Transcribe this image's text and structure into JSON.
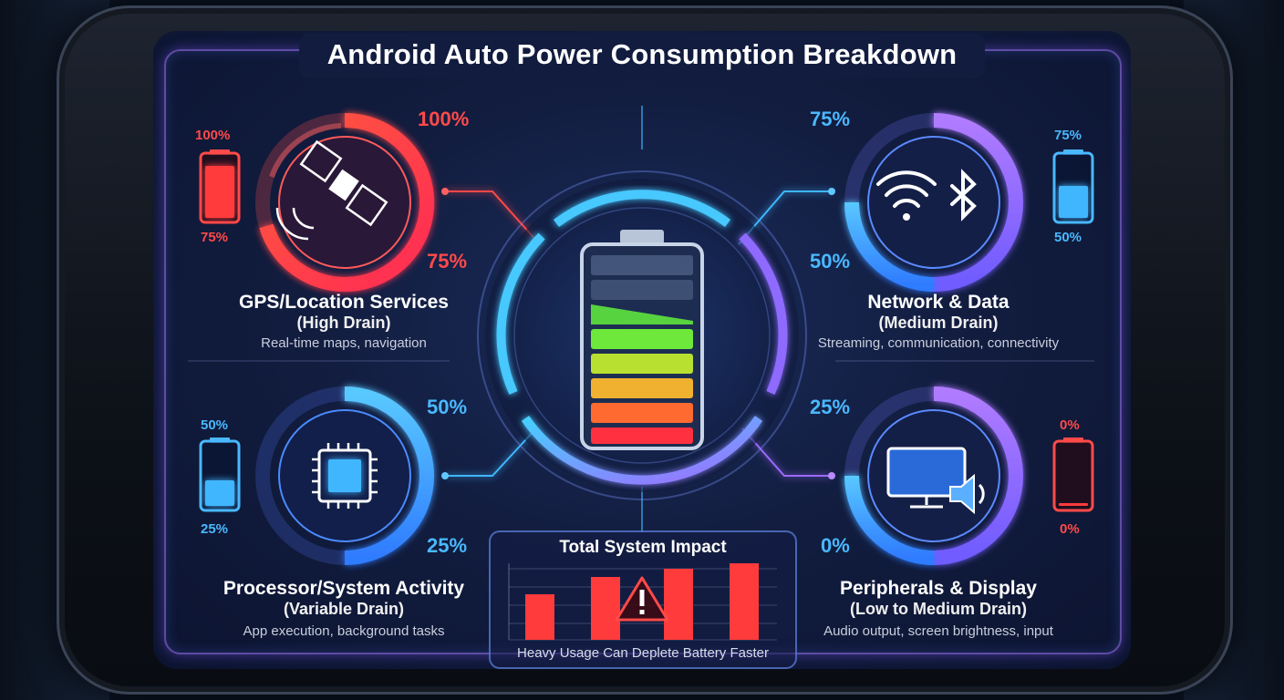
{
  "title": "Android Auto Power Consumption Breakdown",
  "colors": {
    "red": "#ff3b3b",
    "blue": "#3fb6ff",
    "purple": "#9b6bff",
    "green": "#5be23a"
  },
  "sections": {
    "gps": {
      "title": "GPS/Location Services",
      "subtitle": "(High Drain)",
      "description": "Real-time maps, navigation",
      "ring_top": "100%",
      "ring_bottom": "75%",
      "gauge_top": "100%",
      "gauge_bottom": "75%",
      "level": 0.9,
      "icon": "satellite-icon"
    },
    "network": {
      "title": "Network & Data",
      "subtitle": "(Medium Drain)",
      "description": "Streaming, communication, connectivity",
      "ring_top": "75%",
      "ring_bottom": "50%",
      "gauge_top": "75%",
      "gauge_bottom": "50%",
      "level": 0.55,
      "icon": "wifi-bluetooth-icon"
    },
    "processor": {
      "title": "Processor/System Activity",
      "subtitle": "(Variable Drain)",
      "description": "App execution, background tasks",
      "ring_top": "50%",
      "ring_bottom": "25%",
      "gauge_top": "50%",
      "gauge_bottom": "25%",
      "level": 0.45,
      "icon": "chip-icon"
    },
    "peripherals": {
      "title": "Peripherals & Display",
      "subtitle": "(Low to Medium Drain)",
      "description": "Audio output, screen brightness, input",
      "ring_top": "25%",
      "ring_bottom": "0%",
      "gauge_top": "0%",
      "gauge_bottom": "0%",
      "level": 0.03,
      "icon": "monitor-speaker-icon"
    }
  },
  "impact": {
    "title": "Total System Impact",
    "caption": "Heavy Usage Can Deplete Battery Faster",
    "bars": [
      0.45,
      0.62,
      0.7,
      0.75
    ],
    "icon": "warning-icon"
  }
}
